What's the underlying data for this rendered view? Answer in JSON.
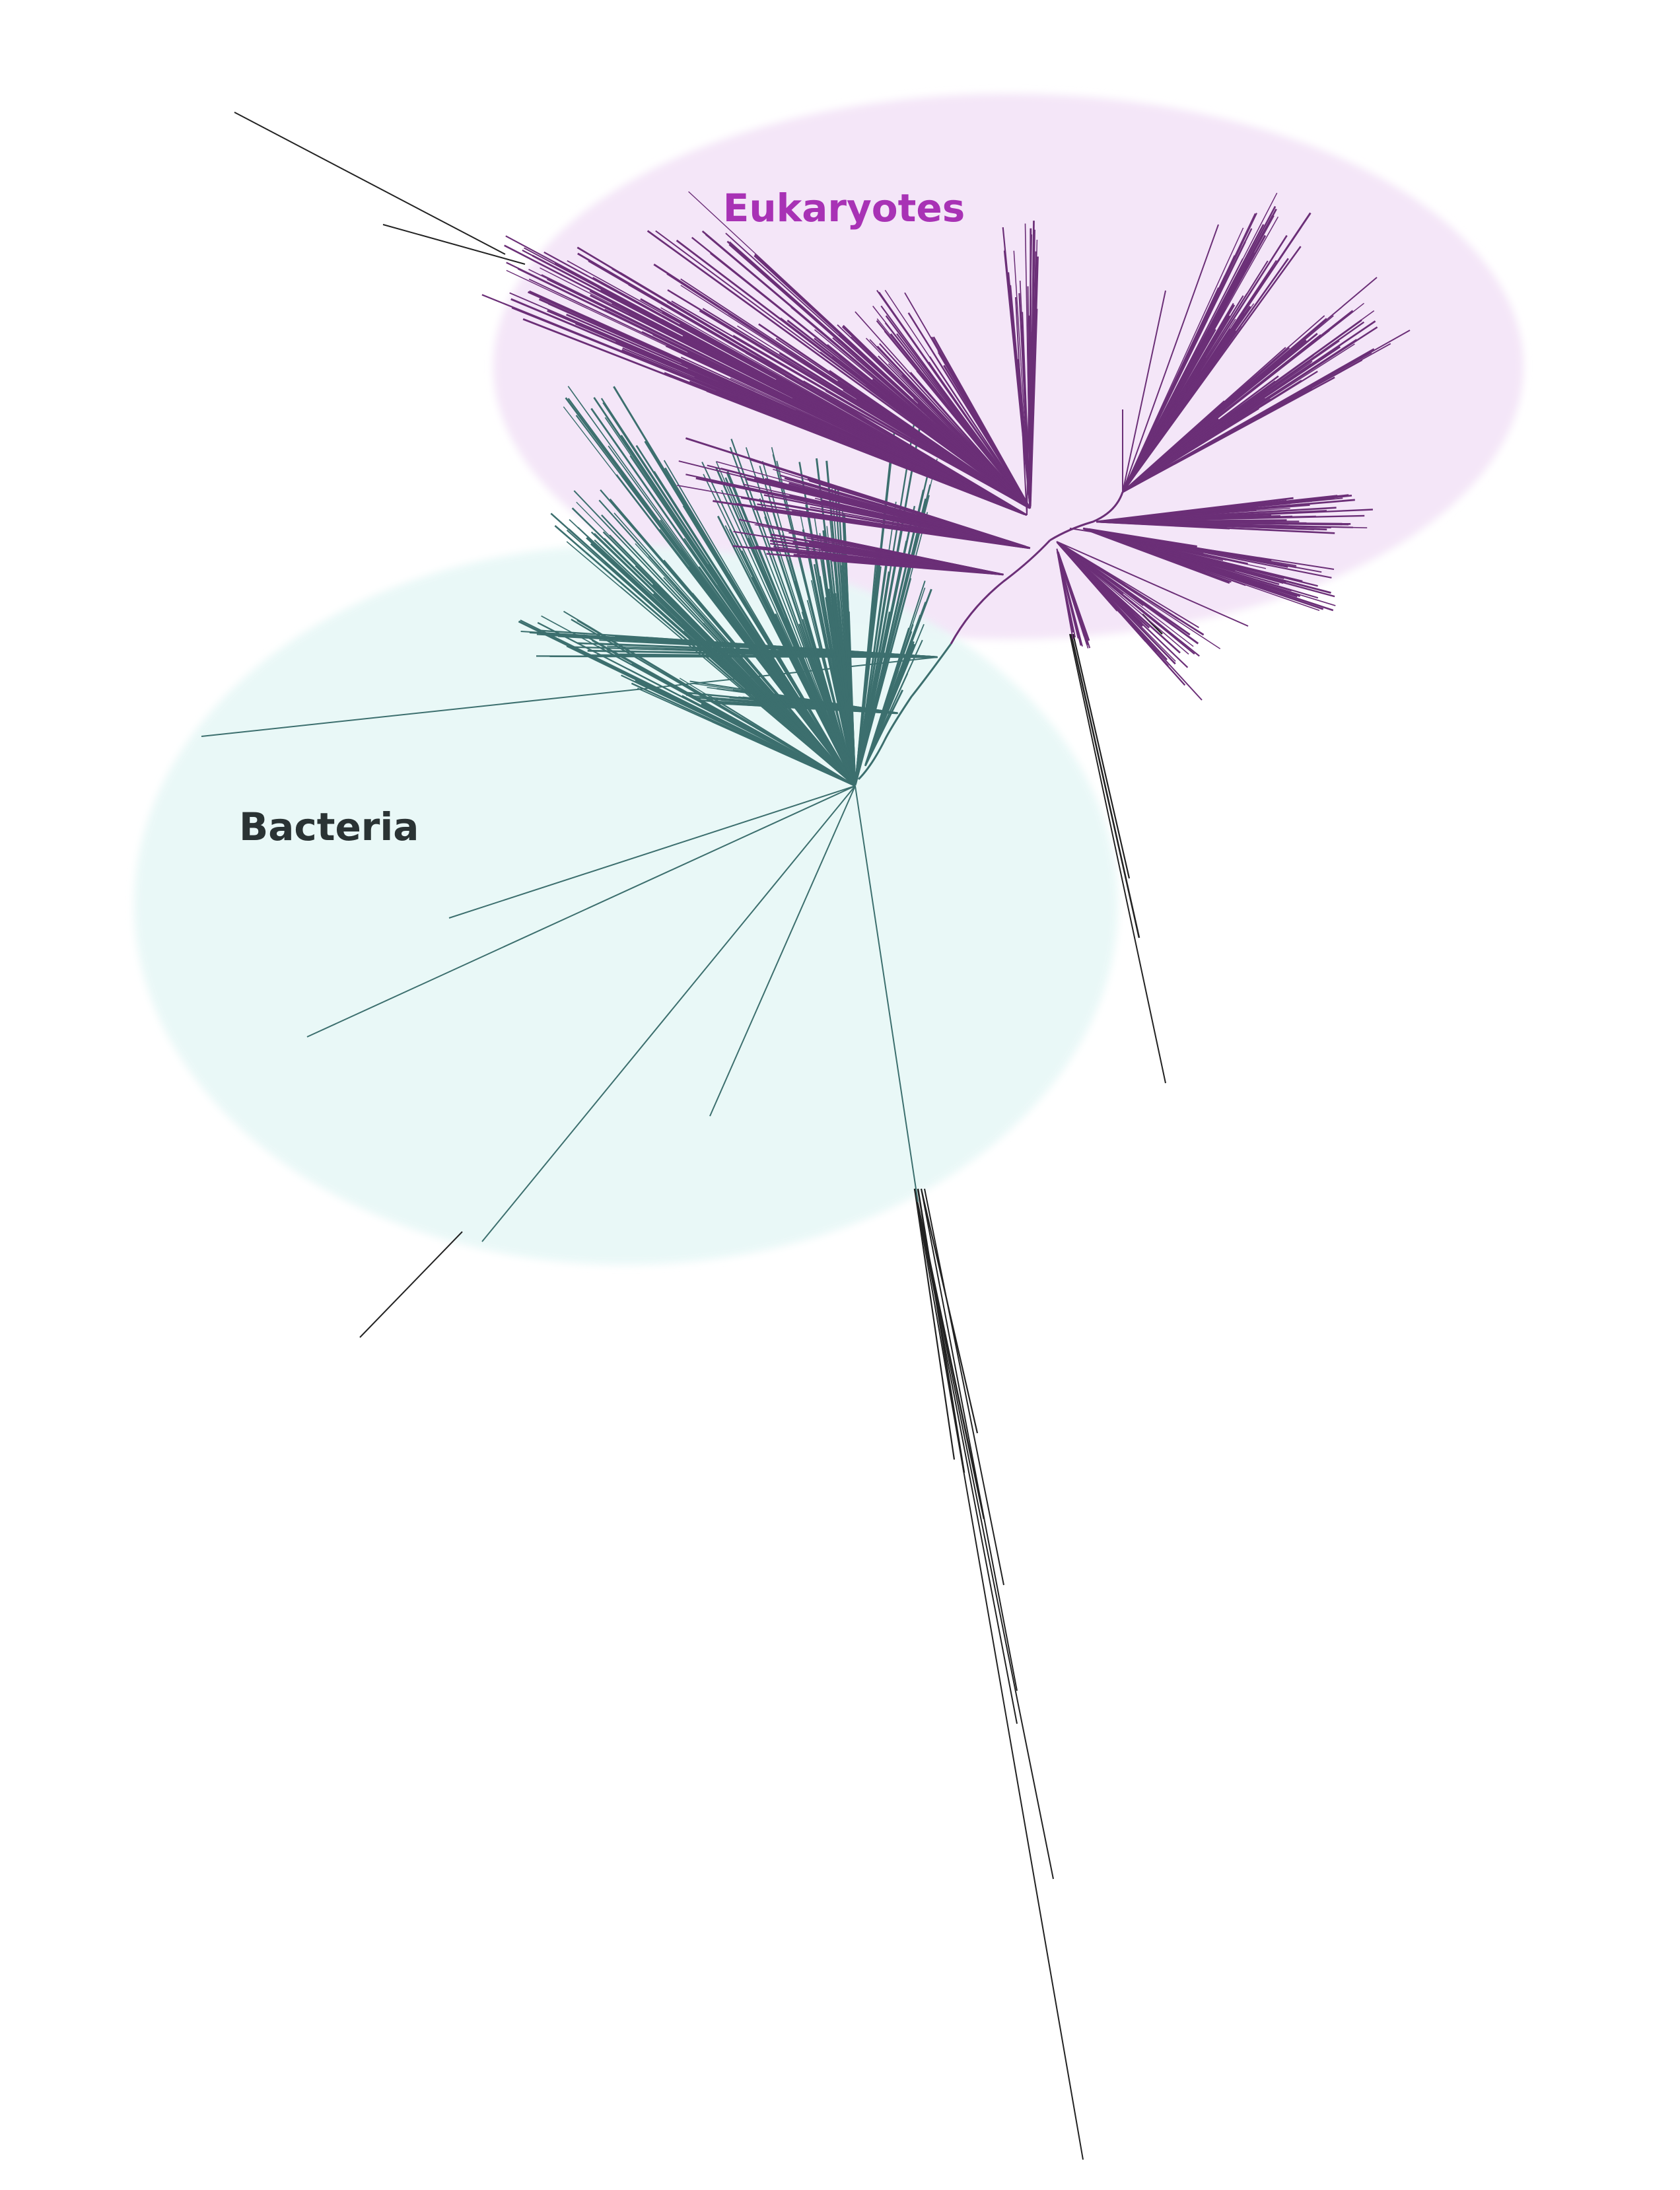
{
  "labels": {
    "eukaryotes": "Eukaryotes",
    "bacteria": "Bacteria"
  },
  "colors": {
    "eukaryote_fill": "#f4e6f8",
    "bacteria_fill": "#e8f8f7",
    "eukaryote_branch": "#6b2f77",
    "bacteria_branch": "#3c6f6e",
    "outgroup_branch": "#222222",
    "eukaryote_label": "#a832b5",
    "bacteria_label": "#2a3334"
  }
}
